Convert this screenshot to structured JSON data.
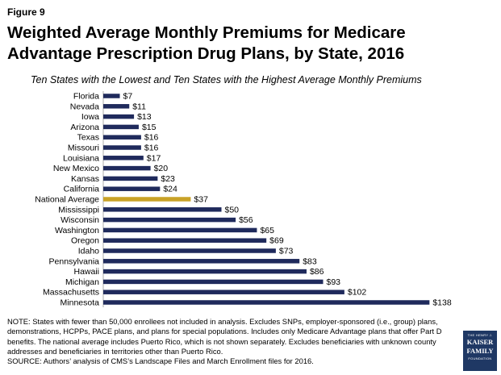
{
  "figure_label": "Figure 9",
  "chart_data": {
    "type": "bar",
    "orientation": "horizontal",
    "title": "Weighted Average Monthly Premiums for Medicare Advantage Prescription Drug Plans, by State, 2016",
    "subtitle": "Ten States with the Lowest and Ten States with the Highest Average Monthly Premiums",
    "categories": [
      "Florida",
      "Nevada",
      "Iowa",
      "Arizona",
      "Texas",
      "Missouri",
      "Louisiana",
      "New Mexico",
      "Kansas",
      "California",
      "National Average",
      "Mississippi",
      "Wisconsin",
      "Washington",
      "Oregon",
      "Idaho",
      "Pennsylvania",
      "Hawaii",
      "Michigan",
      "Massachusetts",
      "Minnesota"
    ],
    "values": [
      7,
      11,
      13,
      15,
      16,
      16,
      17,
      20,
      23,
      24,
      37,
      50,
      56,
      65,
      69,
      73,
      83,
      86,
      93,
      102,
      138
    ],
    "labels": [
      "$7",
      "$11",
      "$13",
      "$15",
      "$16",
      "$16",
      "$17",
      "$20",
      "$23",
      "$24",
      "$37",
      "$50",
      "$56",
      "$65",
      "$69",
      "$73",
      "$83",
      "$86",
      "$93",
      "$102",
      "$138"
    ],
    "xlim": [
      0,
      138
    ],
    "xlabel": "",
    "ylabel": "",
    "grid": false,
    "bar_color": "#1f2a5c",
    "highlight_color": "#c9a227",
    "highlight_category": "National Average"
  },
  "notes": {
    "note": "NOTE:  States with fewer than 50,000 enrollees not included in analysis. Excludes SNPs, employer-sponsored (i.e., group) plans, demonstrations, HCPPs, PACE plans, and plans for special populations.  Includes only Medicare Advantage plans that offer Part D benefits. The national average includes Puerto Rico, which is not shown separately. Excludes beneficiaries with unknown county addresses and beneficiaries in territories other than Puerto Rico.",
    "source": "SOURCE:  Authors’ analysis of CMS’s Landscape Files and March Enrollment files for 2016."
  },
  "logo": {
    "line1": "THE HENRY J.",
    "line2": "KAISER",
    "line3": "FAMILY",
    "line4": "FOUNDATION"
  }
}
